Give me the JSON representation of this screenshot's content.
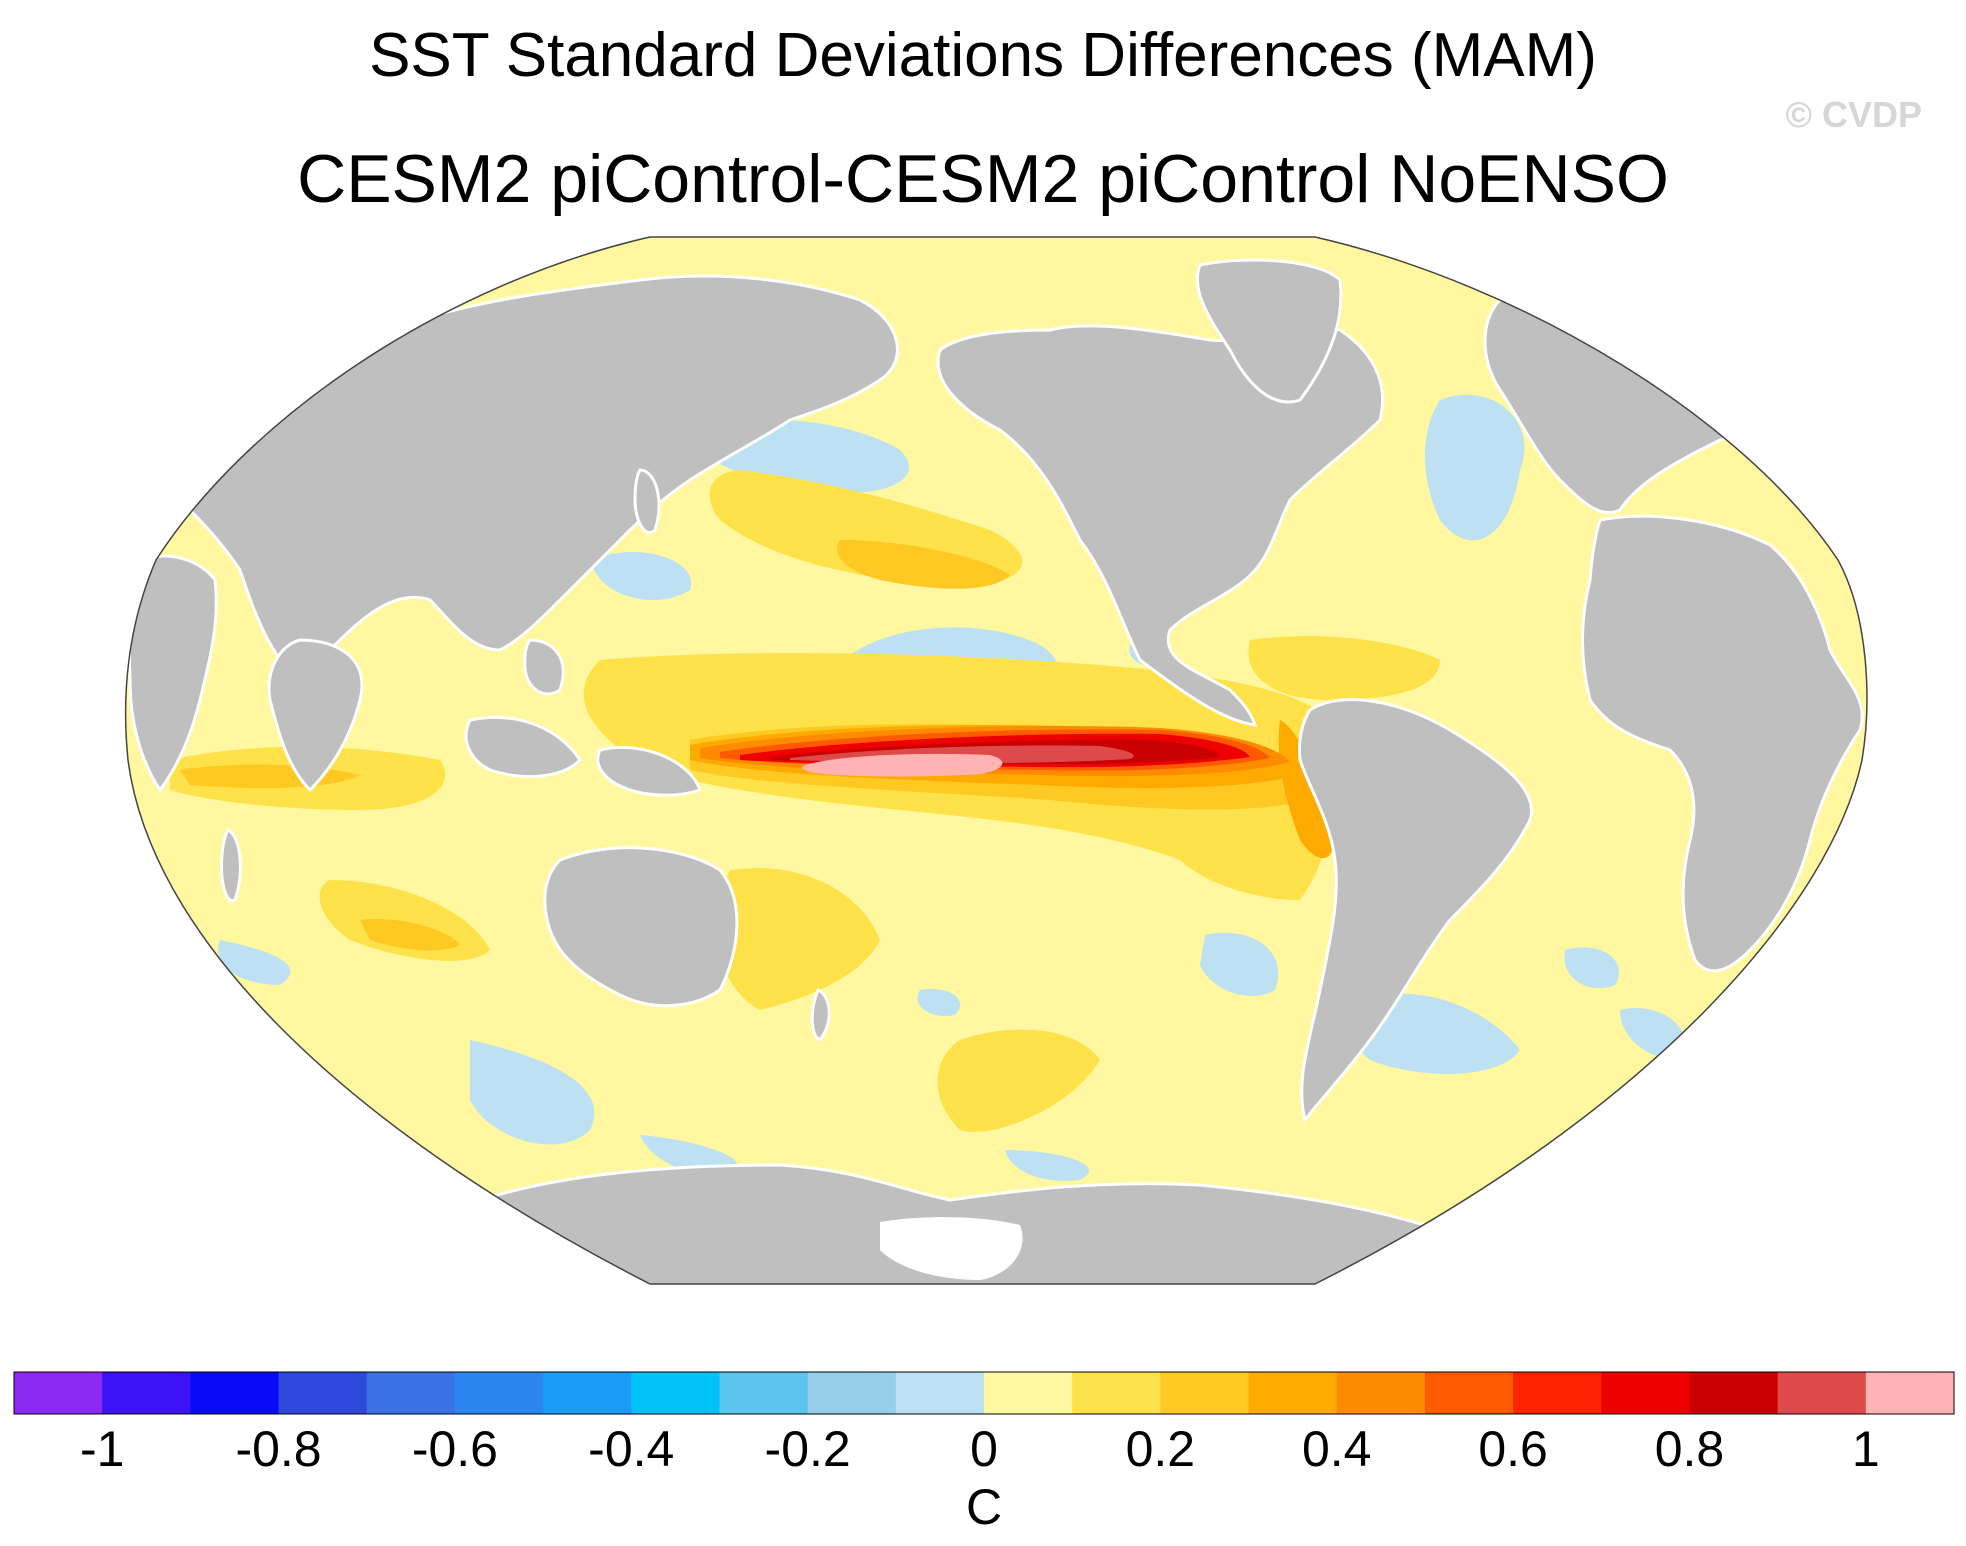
{
  "title": "SST Standard Deviations Differences (MAM)",
  "subtitle": "CESM2 piControl-CESM2 piControl NoENSO",
  "credit": "© CVDP",
  "colorbar": {
    "unit_label": "C",
    "tick_labels": [
      "-1",
      "-0.8",
      "-0.6",
      "-0.4",
      "-0.2",
      "0",
      "0.2",
      "0.4",
      "0.6",
      "0.8",
      "1"
    ],
    "colors": [
      "#8d29f2",
      "#3c12f7",
      "#0a0af7",
      "#2e48dc",
      "#3b72e3",
      "#2b86f2",
      "#1c9cf5",
      "#00c3f7",
      "#5bc4ef",
      "#97cfea",
      "#bde1f3",
      "#fff8a0",
      "#ffe14a",
      "#ffc823",
      "#ffaa00",
      "#ff8b00",
      "#ff5a00",
      "#ff2400",
      "#ee0000",
      "#c80000",
      "#de4a4a",
      "#ffb3b3"
    ]
  },
  "map": {
    "projection": "robinson",
    "land_color": "#bfbfbf",
    "ocean_base_color": "#fff8a0"
  }
}
